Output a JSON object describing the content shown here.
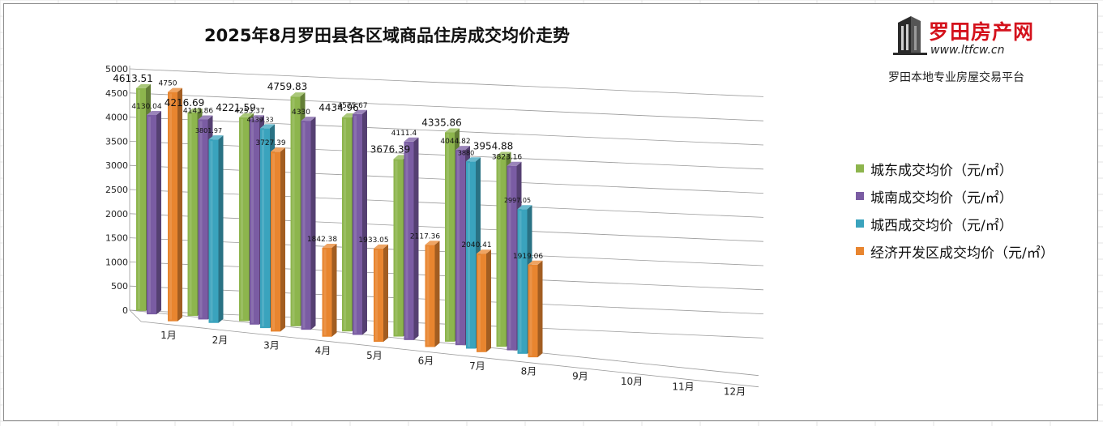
{
  "header": {
    "title": "2025年8月罗田县各区域商品住房成交均价走势"
  },
  "logo": {
    "brand": "罗田房产网",
    "url": "www.ltfcw.cn",
    "slogan": "罗田本地专业房屋交易平台",
    "icon": "building-icon",
    "brand_color": "#d4121c"
  },
  "chart_data": {
    "type": "bar",
    "title": "2025年8月罗田县各区域商品住房成交均价走势",
    "categories": [
      "1月",
      "2月",
      "3月",
      "4月",
      "5月",
      "6月",
      "7月",
      "8月",
      "9月",
      "10月",
      "11月",
      "12月"
    ],
    "ylim": [
      0,
      5000
    ],
    "yticks": [
      "0",
      "500",
      "1000",
      "1500",
      "2000",
      "2500",
      "3000",
      "3500",
      "4000",
      "4500",
      "5000"
    ],
    "grid": true,
    "legend_position": "right",
    "series": [
      {
        "name": "城东成交均价（元/㎡）",
        "color": "#8db54d",
        "values": [
          4613.51,
          4216.69,
          4221.59,
          4759.83,
          4434.96,
          3676.39,
          4335.86,
          3954.88,
          null,
          null,
          null,
          null
        ],
        "labels": [
          "4613.51",
          "4216.69",
          "4221.59",
          "4759.83",
          "4434.96",
          "3676.39",
          "4335.86",
          "3954.88",
          "",
          "",
          "",
          ""
        ]
      },
      {
        "name": "城南成交均价（元/㎡）",
        "color": "#7a5ca3",
        "values": [
          4130.04,
          4143.86,
          4253.37,
          4330,
          4575.67,
          4111.4,
          4044.82,
          3823.16,
          null,
          null,
          null,
          null
        ],
        "labels": [
          "4130.04",
          "4143.86",
          "4253.37",
          "4330",
          "4575.67",
          "4111.4",
          "4044.82",
          "3823.16",
          "",
          "",
          "",
          ""
        ]
      },
      {
        "name": "城西成交均价（元/㎡）",
        "color": "#3aa3bd",
        "values": [
          null,
          3801.97,
          4139.33,
          null,
          null,
          null,
          3880,
          2997.05,
          null,
          null,
          null,
          null
        ],
        "labels": [
          "",
          "3801.97",
          "4139.33",
          "",
          "",
          "",
          "3880",
          "2997.05",
          "",
          "",
          "",
          ""
        ]
      },
      {
        "name": "经济开发区成交均价（元/㎡）",
        "color": "#e8852f",
        "values": [
          4750,
          null,
          3727.39,
          1842.38,
          1933.05,
          2117.36,
          2040.41,
          1919.06,
          null,
          null,
          null,
          null
        ],
        "labels": [
          "4750",
          "",
          "3727.39",
          "1842.38",
          "1933.05",
          "2117.36",
          "2040.41",
          "1919.06",
          "",
          "",
          "",
          ""
        ]
      }
    ]
  }
}
